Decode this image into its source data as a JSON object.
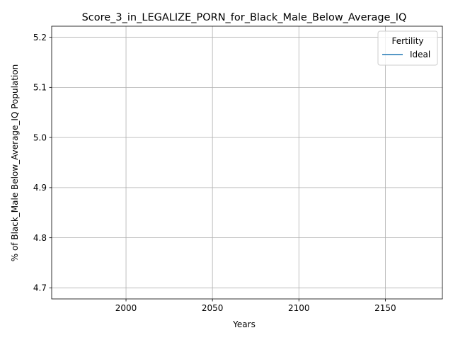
{
  "chart_data": {
    "type": "line",
    "title": "Score_3_in_LEGALIZE_PORN_for_Black_Male_Below_Average_IQ",
    "xlabel": "Years",
    "ylabel": "% of Black_Male Below_Average_IQ Population",
    "xlim": [
      1957,
      2183
    ],
    "ylim": [
      4.678,
      5.222
    ],
    "xticks": [
      2000,
      2050,
      2100,
      2150
    ],
    "yticks": [
      4.7,
      4.8,
      4.9,
      5.0,
      5.1,
      5.2
    ],
    "x_tick_labels": [
      "2000",
      "2050",
      "2100",
      "2150"
    ],
    "y_tick_labels": [
      "4.7",
      "4.8",
      "4.9",
      "5.0",
      "5.1",
      "5.2"
    ],
    "grid": true,
    "legend": {
      "title": "Fertility",
      "placement": "top-right",
      "entries": [
        {
          "name": "Ideal",
          "color": "#1f77b4"
        }
      ]
    },
    "series": [
      {
        "name": "Ideal",
        "color": "#1f77b4",
        "x": [],
        "y": []
      }
    ]
  }
}
